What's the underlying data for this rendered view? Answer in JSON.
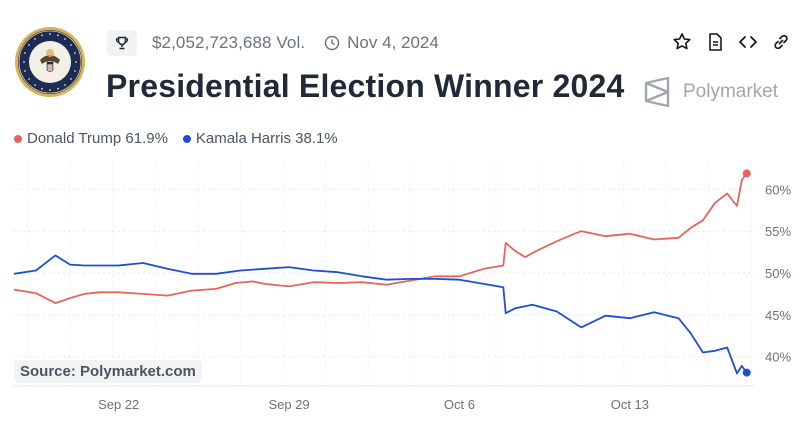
{
  "header": {
    "volume": "$2,052,723,688 Vol.",
    "date": "Nov 4, 2024",
    "title": "Presidential Election Winner 2024",
    "brand": "Polymarket",
    "icons": [
      "trophy-icon",
      "clock-icon",
      "star-icon",
      "document-icon",
      "embed-code-icon",
      "link-icon"
    ]
  },
  "legend": [
    {
      "label": "Donald Trump 61.9%",
      "color": "#e8645a"
    },
    {
      "label": "Kamala Harris 38.1%",
      "color": "#1d4ed8"
    }
  ],
  "source": "Source: Polymarket.com",
  "colors": {
    "trump": "#e8645a",
    "harris": "#1d4ed8",
    "grid": "#e5e7eb",
    "muted": "#6b7280"
  },
  "chart_data": {
    "type": "line",
    "title": "Presidential Election Winner 2024",
    "xlabel": "",
    "ylabel": "",
    "x_tick_labels": [
      "Sep 22",
      "Sep 29",
      "Oct 6",
      "Oct 13"
    ],
    "x_tick_days": [
      22,
      29,
      36,
      43
    ],
    "y_tick_labels": [
      "40%",
      "45%",
      "50%",
      "55%",
      "60%"
    ],
    "y_ticks": [
      40,
      45,
      50,
      55,
      60
    ],
    "ylim": [
      36.5,
      63.5
    ],
    "x_range_days": [
      17.7,
      48.1
    ],
    "grid": true,
    "legend_position": "top-left",
    "series": [
      {
        "name": "Donald Trump",
        "color": "#e8645a",
        "x": [
          17.7,
          18.6,
          19.4,
          20.0,
          20.6,
          21.2,
          22.0,
          23.0,
          24.0,
          25.0,
          26.0,
          26.8,
          27.5,
          28.0,
          29.0,
          30.0,
          31.0,
          32.0,
          33.0,
          34.0,
          35.0,
          36.0,
          37.0,
          37.8,
          37.9,
          38.3,
          38.7,
          39.2,
          40.0,
          41.0,
          42.0,
          43.0,
          44.0,
          45.0,
          45.5,
          46.0,
          46.5,
          47.0,
          47.4,
          47.6,
          47.8
        ],
        "y": [
          48.0,
          47.6,
          46.4,
          47.0,
          47.5,
          47.7,
          47.7,
          47.5,
          47.3,
          47.9,
          48.1,
          48.8,
          49.0,
          48.7,
          48.4,
          48.9,
          48.8,
          48.9,
          48.6,
          49.1,
          49.6,
          49.6,
          50.5,
          50.9,
          53.6,
          52.6,
          51.9,
          52.7,
          53.8,
          55.0,
          54.4,
          54.7,
          54.0,
          54.2,
          55.4,
          56.3,
          58.4,
          59.5,
          58.0,
          61.1,
          61.9
        ]
      },
      {
        "name": "Kamala Harris",
        "color": "#1d4ed8",
        "x": [
          17.7,
          18.6,
          19.4,
          20.0,
          20.6,
          21.2,
          22.0,
          23.0,
          24.0,
          25.0,
          26.0,
          27.0,
          28.0,
          29.0,
          30.0,
          31.0,
          32.0,
          33.0,
          34.0,
          35.0,
          36.0,
          37.0,
          37.8,
          37.9,
          38.3,
          39.0,
          40.0,
          41.0,
          42.0,
          43.0,
          44.0,
          45.0,
          45.5,
          46.0,
          46.5,
          47.0,
          47.4,
          47.6,
          47.8
        ],
        "y": [
          49.9,
          50.3,
          52.1,
          51.0,
          50.9,
          50.9,
          50.9,
          51.2,
          50.5,
          49.9,
          49.9,
          50.3,
          50.5,
          50.7,
          50.3,
          50.1,
          49.6,
          49.2,
          49.3,
          49.3,
          49.2,
          48.7,
          48.3,
          45.2,
          45.8,
          46.2,
          45.4,
          43.5,
          44.9,
          44.6,
          45.3,
          44.6,
          42.8,
          40.5,
          40.7,
          41.1,
          38.0,
          38.9,
          38.1
        ]
      }
    ]
  }
}
